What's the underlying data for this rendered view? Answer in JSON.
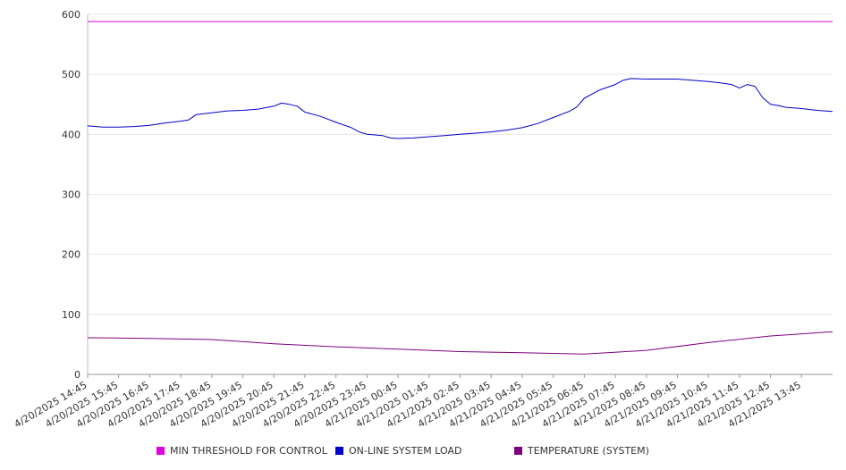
{
  "chart_data": {
    "type": "line",
    "title": "",
    "xlabel": "",
    "ylabel": "",
    "ylim": [
      0,
      600
    ],
    "yticks": [
      0,
      100,
      200,
      300,
      400,
      500,
      600
    ],
    "grid": true,
    "legend_position": "bottom",
    "x_tick_labels": [
      "4/20/2025 14:45",
      "4/20/2025 15:45",
      "4/20/2025 16:45",
      "4/20/2025 17:45",
      "4/20/2025 18:45",
      "4/20/2025 19:45",
      "4/20/2025 20:45",
      "4/20/2025 21:45",
      "4/20/2025 22:45",
      "4/20/2025 23:45",
      "4/21/2025 00:45",
      "4/21/2025 01:45",
      "4/21/2025 02:45",
      "4/21/2025 03:45",
      "4/21/2025 04:45",
      "4/21/2025 05:45",
      "4/21/2025 06:45",
      "4/21/2025 07:45",
      "4/21/2025 08:45",
      "4/21/2025 09:45",
      "4/21/2025 10:45",
      "4/21/2025 11:45",
      "4/21/2025 12:45",
      "4/21/2025 13:45"
    ],
    "x_start": "4/20/2025 14:45",
    "x_end": "4/21/2025 14:45",
    "series": [
      {
        "name": "MIN THRESHOLD FOR CONTROL",
        "color": "#e000e0",
        "points": [
          [
            "4/20/2025 14:45",
            588
          ],
          [
            "4/21/2025 14:45",
            588
          ]
        ]
      },
      {
        "name": "ON-LINE SYSTEM LOAD",
        "color": "#0000cc",
        "points": [
          [
            "4/20/2025 14:45",
            414
          ],
          [
            "4/20/2025 15:15",
            412
          ],
          [
            "4/20/2025 15:45",
            412
          ],
          [
            "4/20/2025 16:15",
            413
          ],
          [
            "4/20/2025 16:45",
            415
          ],
          [
            "4/20/2025 17:15",
            419
          ],
          [
            "4/20/2025 17:45",
            422
          ],
          [
            "4/20/2025 18:00",
            424
          ],
          [
            "4/20/2025 18:15",
            433
          ],
          [
            "4/20/2025 18:45",
            436
          ],
          [
            "4/20/2025 19:15",
            439
          ],
          [
            "4/20/2025 19:45",
            440
          ],
          [
            "4/20/2025 20:15",
            442
          ],
          [
            "4/20/2025 20:45",
            447
          ],
          [
            "4/20/2025 21:00",
            452
          ],
          [
            "4/20/2025 21:15",
            450
          ],
          [
            "4/20/2025 21:30",
            447
          ],
          [
            "4/20/2025 21:45",
            437
          ],
          [
            "4/20/2025 22:15",
            430
          ],
          [
            "4/20/2025 22:45",
            420
          ],
          [
            "4/20/2025 23:15",
            411
          ],
          [
            "4/20/2025 23:30",
            404
          ],
          [
            "4/20/2025 23:45",
            400
          ],
          [
            "4/21/2025 00:15",
            398
          ],
          [
            "4/21/2025 00:30",
            394
          ],
          [
            "4/21/2025 00:45",
            393
          ],
          [
            "4/21/2025 01:15",
            394
          ],
          [
            "4/21/2025 01:45",
            396
          ],
          [
            "4/21/2025 02:15",
            398
          ],
          [
            "4/21/2025 02:45",
            400
          ],
          [
            "4/21/2025 03:15",
            402
          ],
          [
            "4/21/2025 03:45",
            404
          ],
          [
            "4/21/2025 04:15",
            407
          ],
          [
            "4/21/2025 04:45",
            411
          ],
          [
            "4/21/2025 05:15",
            418
          ],
          [
            "4/21/2025 05:45",
            428
          ],
          [
            "4/21/2025 06:15",
            438
          ],
          [
            "4/21/2025 06:30",
            445
          ],
          [
            "4/21/2025 06:45",
            460
          ],
          [
            "4/21/2025 07:15",
            474
          ],
          [
            "4/21/2025 07:45",
            483
          ],
          [
            "4/21/2025 08:00",
            490
          ],
          [
            "4/21/2025 08:15",
            493
          ],
          [
            "4/21/2025 08:45",
            492
          ],
          [
            "4/21/2025 09:15",
            492
          ],
          [
            "4/21/2025 09:45",
            492
          ],
          [
            "4/21/2025 10:15",
            490
          ],
          [
            "4/21/2025 10:45",
            488
          ],
          [
            "4/21/2025 11:15",
            485
          ],
          [
            "4/21/2025 11:30",
            483
          ],
          [
            "4/21/2025 11:45",
            477
          ],
          [
            "4/21/2025 12:00",
            483
          ],
          [
            "4/21/2025 12:15",
            480
          ],
          [
            "4/21/2025 12:30",
            461
          ],
          [
            "4/21/2025 12:45",
            450
          ],
          [
            "4/21/2025 13:00",
            448
          ],
          [
            "4/21/2025 13:15",
            445
          ],
          [
            "4/21/2025 13:45",
            443
          ],
          [
            "4/21/2025 14:15",
            440
          ],
          [
            "4/21/2025 14:45",
            438
          ]
        ]
      },
      {
        "name": "TEMPERATURE (SYSTEM)",
        "color": "#800080",
        "points": [
          [
            "4/20/2025 14:45",
            61
          ],
          [
            "4/20/2025 16:45",
            60
          ],
          [
            "4/20/2025 18:45",
            58
          ],
          [
            "4/20/2025 20:45",
            51
          ],
          [
            "4/20/2025 22:45",
            46
          ],
          [
            "4/21/2025 00:45",
            42
          ],
          [
            "4/21/2025 02:45",
            38
          ],
          [
            "4/21/2025 04:45",
            36
          ],
          [
            "4/21/2025 06:45",
            34
          ],
          [
            "4/21/2025 08:45",
            40
          ],
          [
            "4/21/2025 10:45",
            53
          ],
          [
            "4/21/2025 12:45",
            64
          ],
          [
            "4/21/2025 14:45",
            71
          ]
        ]
      }
    ]
  }
}
